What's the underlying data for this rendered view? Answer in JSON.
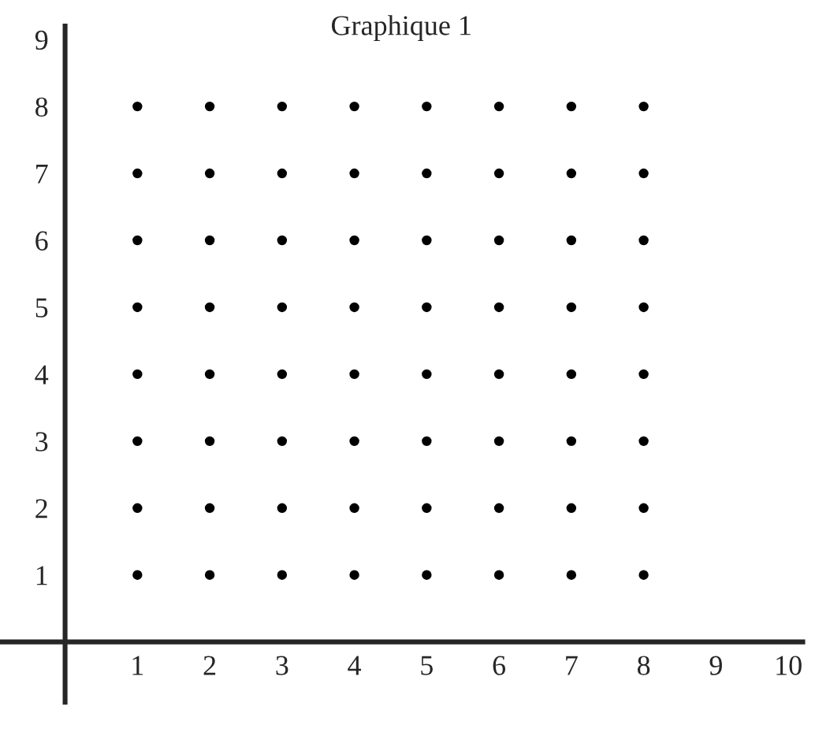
{
  "chart_data": {
    "type": "scatter",
    "title": "Graphique 1",
    "series": [
      {
        "color": "#000000",
        "x": [
          1,
          2,
          3,
          4,
          5,
          6,
          7,
          8,
          1,
          2,
          3,
          4,
          5,
          6,
          7,
          8,
          1,
          2,
          3,
          4,
          5,
          6,
          7,
          8,
          1,
          2,
          3,
          4,
          5,
          6,
          7,
          8,
          1,
          2,
          3,
          4,
          5,
          6,
          7,
          8,
          1,
          2,
          3,
          4,
          5,
          6,
          7,
          8,
          1,
          2,
          3,
          4,
          5,
          6,
          7,
          8,
          1,
          2,
          3,
          4,
          5,
          6,
          7,
          8
        ],
        "values": [
          1,
          1,
          1,
          1,
          1,
          1,
          1,
          1,
          2,
          2,
          2,
          2,
          2,
          2,
          2,
          2,
          3,
          3,
          3,
          3,
          3,
          3,
          3,
          3,
          4,
          4,
          4,
          4,
          4,
          4,
          4,
          4,
          5,
          5,
          5,
          5,
          5,
          5,
          5,
          5,
          6,
          6,
          6,
          6,
          6,
          6,
          6,
          6,
          7,
          7,
          7,
          7,
          7,
          7,
          7,
          7,
          8,
          8,
          8,
          8,
          8,
          8,
          8,
          8
        ]
      }
    ],
    "xlim": [
      -0.9,
      10.2
    ],
    "ylim": [
      -0.9,
      9.2
    ],
    "xticks": [
      1,
      2,
      3,
      4,
      5,
      6,
      7,
      8,
      9,
      10
    ],
    "yticks": [
      1,
      2,
      3,
      4,
      5,
      6,
      7,
      8,
      9
    ],
    "marker": "circle",
    "grid": false,
    "legend": false
  }
}
